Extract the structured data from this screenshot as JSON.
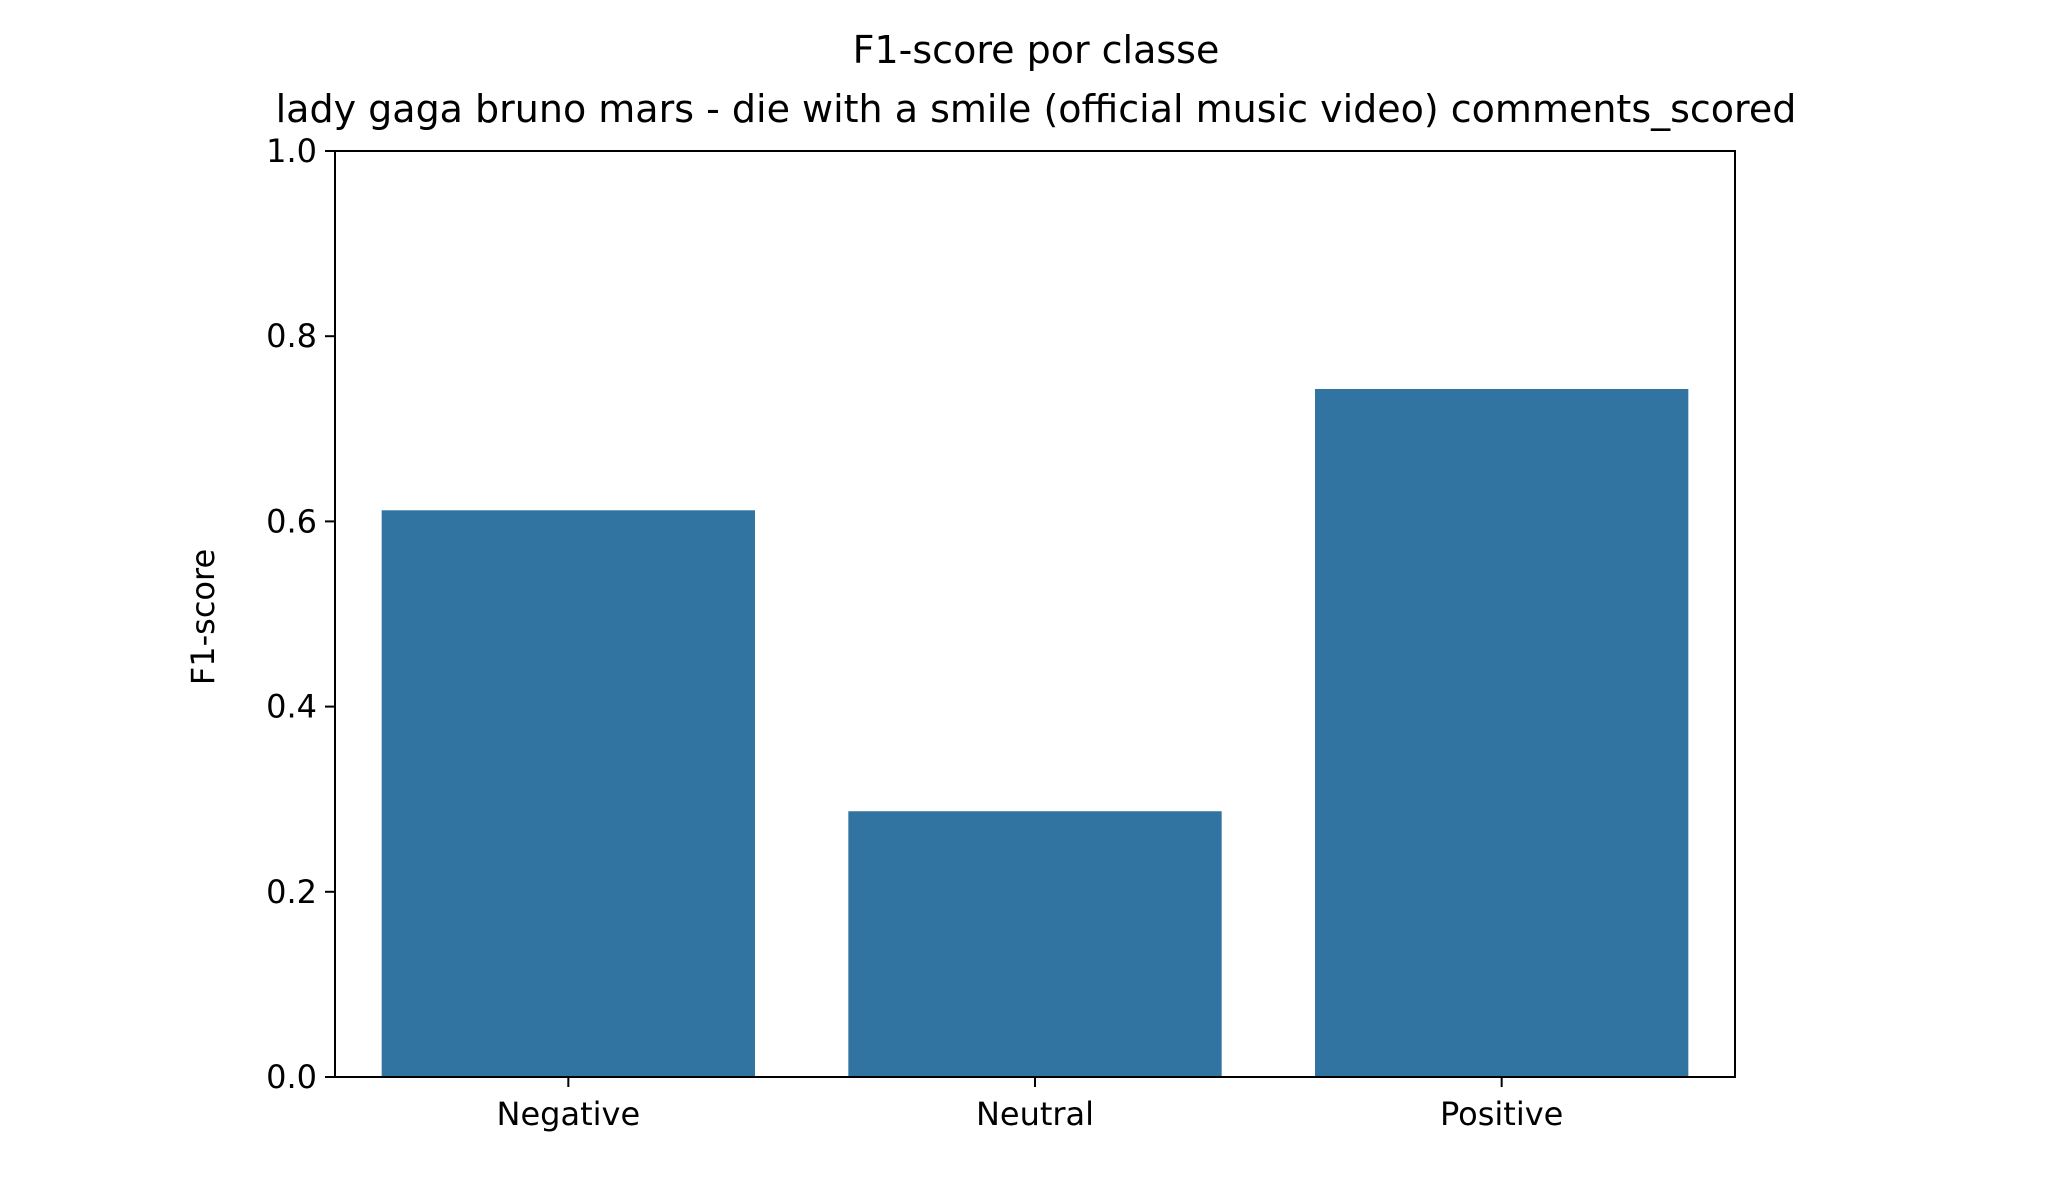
{
  "chart_data": {
    "type": "bar",
    "title": "F1-score por classe",
    "subtitle": "lady gaga bruno mars - die with a smile (official music video) comments_scored",
    "xlabel": "",
    "ylabel": "F1-score",
    "categories": [
      "Negative",
      "Neutral",
      "Positive"
    ],
    "values": [
      0.612,
      0.287,
      0.743
    ],
    "ylim": [
      0,
      1.0
    ],
    "yticks": [
      "0.0",
      "0.2",
      "0.4",
      "0.6",
      "0.8",
      "1.0"
    ],
    "grid": false,
    "legend": "none",
    "bar_color": "#3274a1"
  }
}
